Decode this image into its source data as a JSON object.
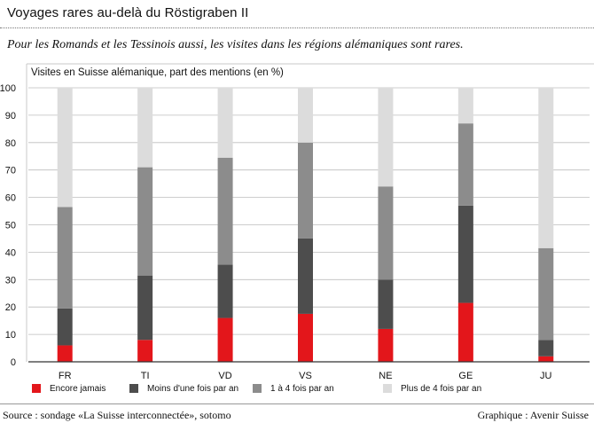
{
  "header": {
    "title": "Voyages rares au-delà du Röstigraben II",
    "subtitle": "Pour les Romands et les Tessinois aussi, les visites dans les régions alémaniques sont rares."
  },
  "footer": {
    "source": "Source : sondage «La Suisse interconnectée», sotomo",
    "credit": "Graphique : Avenir Suisse"
  },
  "colors": {
    "encore_jamais": "#e3161b",
    "moins_une_fois": "#4d4d4d",
    "un_a_quatre": "#8c8c8c",
    "plus_de_quatre": "#dcdcdc",
    "grid": "#bdbdbd",
    "axis": "#333333"
  },
  "chart_data": {
    "type": "bar",
    "stacked": true,
    "ylabel": "Visites en Suisse alémanique, part des mentions (en %)",
    "xlabel": "",
    "ylim": [
      0,
      100
    ],
    "yticks": [
      0,
      10,
      20,
      30,
      40,
      50,
      60,
      70,
      80,
      90,
      100
    ],
    "grid": true,
    "legend_position": "bottom",
    "categories": [
      "FR",
      "TI",
      "VD",
      "VS",
      "NE",
      "GE",
      "JU"
    ],
    "series": [
      {
        "name": "Encore jamais",
        "color": "#e3161b",
        "values": [
          6,
          8,
          16,
          17.5,
          12,
          21.5,
          2
        ]
      },
      {
        "name": "Moins d'une fois par an",
        "color": "#4d4d4d",
        "values": [
          13.5,
          23.5,
          19.5,
          27.5,
          18,
          35.5,
          6
        ]
      },
      {
        "name": "1 à 4 fois par an",
        "color": "#8c8c8c",
        "values": [
          37,
          39.5,
          39,
          35,
          34,
          30,
          33.5
        ]
      },
      {
        "name": "Plus de 4 fois par an",
        "color": "#dcdcdc",
        "values": [
          43.5,
          29,
          25.5,
          20,
          36,
          13,
          58.5
        ]
      }
    ]
  }
}
